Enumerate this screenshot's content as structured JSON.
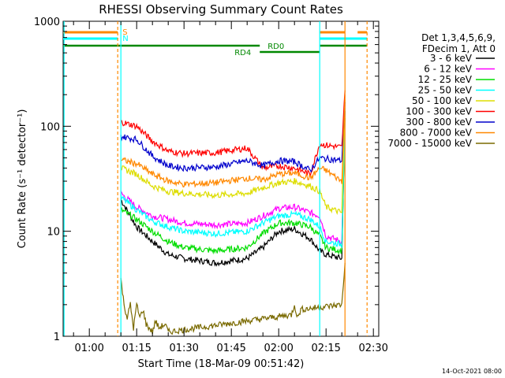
{
  "chart_data": {
    "type": "line",
    "title": "RHESSI Observing Summary Count Rates",
    "xlabel": "Start Time (18-Mar-09 00:51:42)",
    "ylabel": "Count Rate (s⁻¹ detector⁻¹)",
    "y_scale": "log",
    "ylim": [
      1,
      1000
    ],
    "y_ticks": [
      1,
      10,
      100,
      1000
    ],
    "y_tick_labels": [
      "1",
      "10",
      "100",
      "1000"
    ],
    "x_range_minutes": [
      "00:51:42",
      "02:31:42"
    ],
    "x_ticks": [
      "01:00",
      "01:15",
      "01:30",
      "01:45",
      "02:00",
      "02:15",
      "02:30"
    ],
    "grid": false,
    "legend_position": "right",
    "legend_header": [
      "Det 1,3,4,5,6,9,",
      "FDecim 1, Att 0"
    ],
    "series": [
      {
        "name": "3 - 6 keV",
        "color": "#000000",
        "x": [
          "01:10",
          "01:15",
          "01:20",
          "01:25",
          "01:30",
          "01:40",
          "01:50",
          "01:55",
          "02:00",
          "02:05",
          "02:10",
          "02:13",
          "02:15",
          "02:20",
          "02:21"
        ],
        "values": [
          20,
          11,
          8,
          6,
          5.5,
          5,
          5.5,
          7,
          10,
          10.5,
          8.5,
          6.5,
          6,
          5.5,
          140
        ]
      },
      {
        "name": "6 - 12 keV",
        "color": "#ff00ff",
        "x": [
          "01:10",
          "01:15",
          "01:20",
          "01:25",
          "01:30",
          "01:40",
          "01:50",
          "01:55",
          "02:00",
          "02:05",
          "02:10",
          "02:13",
          "02:15",
          "02:20",
          "02:21"
        ],
        "values": [
          23,
          17,
          14,
          13,
          12,
          11.5,
          12,
          14,
          16.5,
          17,
          15,
          14,
          9,
          8,
          160
        ]
      },
      {
        "name": "12 - 25 keV",
        "color": "#00dd00",
        "x": [
          "01:10",
          "01:15",
          "01:20",
          "01:25",
          "01:30",
          "01:40",
          "01:50",
          "01:55",
          "02:00",
          "02:05",
          "02:10",
          "02:13",
          "02:15",
          "02:20",
          "02:21"
        ],
        "values": [
          16,
          13,
          10,
          8,
          7,
          6.5,
          7,
          9.5,
          12,
          12,
          11,
          9,
          7,
          6.5,
          120
        ]
      },
      {
        "name": "25 - 50 keV",
        "color": "#00ffff",
        "x": [
          "01:10",
          "01:15",
          "01:20",
          "01:25",
          "01:30",
          "01:40",
          "01:50",
          "01:55",
          "02:00",
          "02:05",
          "02:10",
          "02:13",
          "02:15",
          "02:20",
          "02:21"
        ],
        "values": [
          21,
          16,
          12.5,
          11,
          10,
          9.5,
          10,
          12,
          14,
          14.5,
          13,
          11,
          8,
          7.5,
          150
        ]
      },
      {
        "name": "50 - 100 keV",
        "color": "#dddd00",
        "x": [
          "01:10",
          "01:15",
          "01:20",
          "01:25",
          "01:30",
          "01:40",
          "01:50",
          "01:55",
          "02:00",
          "02:05",
          "02:10",
          "02:13",
          "02:15",
          "02:20",
          "02:21"
        ],
        "values": [
          40,
          35,
          27,
          24,
          23,
          22,
          23,
          26,
          29,
          30,
          27,
          24,
          17,
          15,
          180
        ]
      },
      {
        "name": "100 - 300 keV",
        "color": "#ff0000",
        "x": [
          "01:10",
          "01:15",
          "01:20",
          "01:25",
          "01:30",
          "01:40",
          "01:50",
          "01:55",
          "02:00",
          "02:05",
          "02:10",
          "02:13",
          "02:15",
          "02:20",
          "02:21"
        ],
        "values": [
          110,
          100,
          72,
          58,
          55,
          56,
          62,
          40,
          42,
          40,
          35,
          68,
          66,
          63,
          220
        ]
      },
      {
        "name": "300 - 800 keV",
        "color": "#0000cc",
        "x": [
          "01:10",
          "01:15",
          "01:20",
          "01:25",
          "01:30",
          "01:40",
          "01:50",
          "01:55",
          "02:00",
          "02:05",
          "02:10",
          "02:13",
          "02:15",
          "02:20",
          "02:21"
        ],
        "values": [
          80,
          75,
          52,
          42,
          40,
          41,
          47,
          42,
          47,
          46,
          38,
          50,
          49,
          47,
          170
        ]
      },
      {
        "name": "800 - 7000 keV",
        "color": "#ff8800",
        "x": [
          "01:10",
          "01:15",
          "01:20",
          "01:25",
          "01:30",
          "01:40",
          "01:50",
          "01:55",
          "02:00",
          "02:05",
          "02:10",
          "02:13",
          "02:15",
          "02:20",
          "02:21"
        ],
        "values": [
          48,
          44,
          35,
          30,
          28,
          29,
          32,
          31,
          35,
          36,
          32,
          40,
          38,
          30,
          200
        ]
      },
      {
        "name": "7000 - 15000 keV",
        "color": "#7a6a00",
        "x": [
          "01:10",
          "01:11",
          "01:12",
          "01:13",
          "01:14",
          "01:15",
          "01:16",
          "01:17",
          "01:18",
          "01:20",
          "01:21",
          "01:22",
          "01:24",
          "01:25",
          "02:04",
          "02:05",
          "02:06",
          "02:07",
          "02:20",
          "02:21"
        ],
        "values": [
          3.5,
          2,
          1.5,
          2,
          1.2,
          2,
          1.5,
          1.8,
          1.3,
          1.1,
          1.4,
          1.2,
          1.3,
          1.1,
          1.6,
          2,
          1.5,
          1.8,
          2,
          5
        ]
      }
    ],
    "annotations": [
      {
        "text": "S",
        "color": "#ff8800"
      },
      {
        "text": "N",
        "color": "#00ffff"
      },
      {
        "text": "RD0",
        "color": "#008800"
      },
      {
        "text": "RD4",
        "color": "#008800"
      }
    ],
    "footer_date": "14-Oct-2021 08:00"
  }
}
